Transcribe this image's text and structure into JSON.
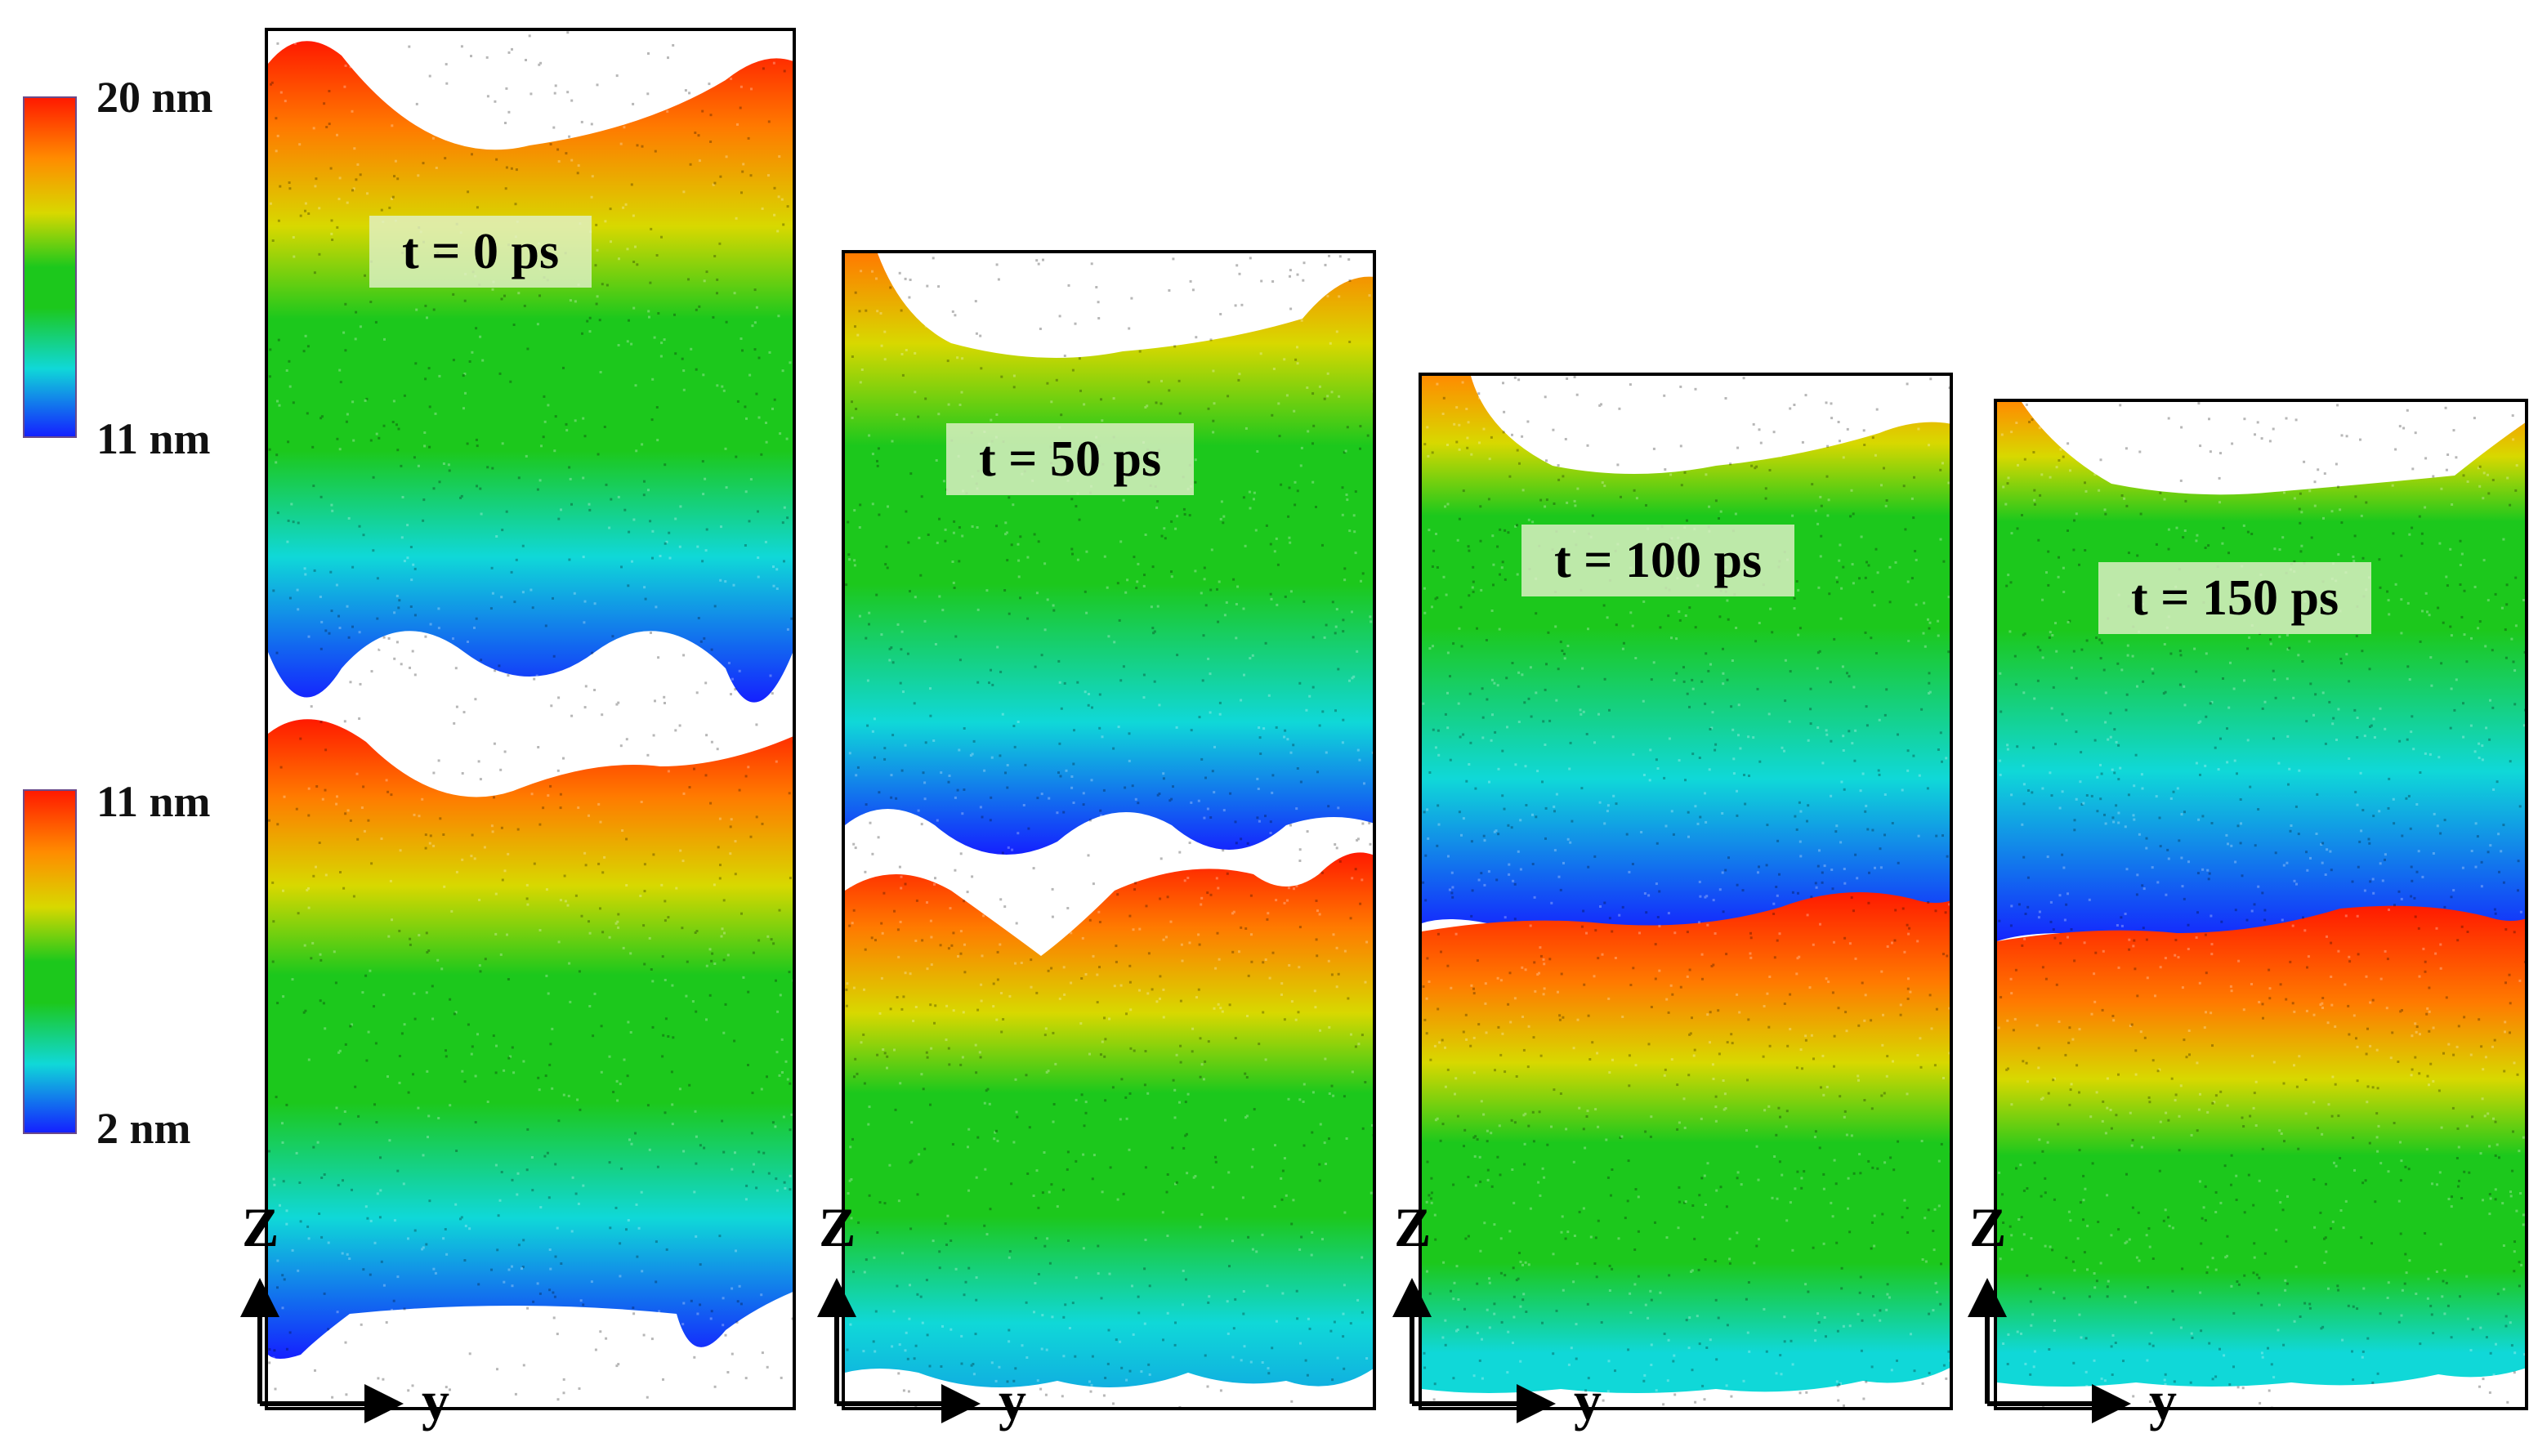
{
  "colorbar_top": {
    "max_label": "20 nm",
    "min_label": "11 nm"
  },
  "colorbar_bottom": {
    "max_label": "11 nm",
    "min_label": "2 nm"
  },
  "panels": [
    {
      "time_label": "t = 0 ps"
    },
    {
      "time_label": "t = 50 ps"
    },
    {
      "time_label": "t = 100 ps"
    },
    {
      "time_label": "t = 150 ps"
    }
  ],
  "axes": {
    "vertical": "Z",
    "horizontal": "y"
  },
  "colors": {
    "red": "#ff1a00",
    "orange": "#ff8c00",
    "yellow": "#d8d800",
    "green": "#1cc81c",
    "cyan": "#10d8d8",
    "blue": "#1420ff",
    "frame": "#000000"
  }
}
